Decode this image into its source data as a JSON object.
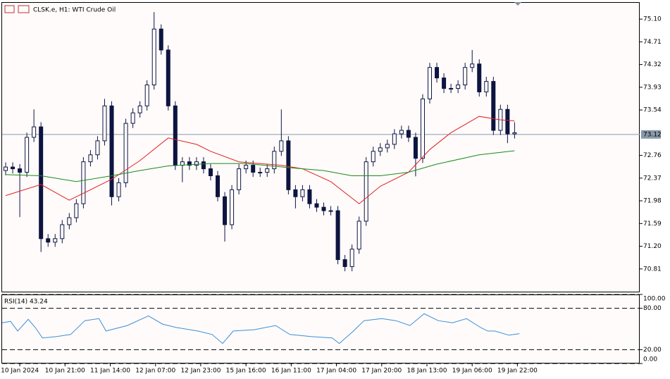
{
  "chart_data": [
    {
      "type": "candlestick",
      "title": "CLSK.e, H1:  WTI Crude Oil",
      "open": [
        72.5,
        72.56,
        72.53,
        72.47,
        73.07,
        73.25,
        71.33,
        71.27,
        71.33,
        71.57,
        71.69,
        71.93,
        72.65,
        72.77,
        73.01,
        73.61,
        72.05,
        72.29,
        73.31,
        73.49,
        73.61,
        73.97,
        74.93,
        74.57,
        73.61,
        72.59,
        72.65,
        72.59,
        72.65,
        72.53,
        72.41,
        72.05,
        71.57,
        72.17,
        72.53,
        72.59,
        72.47,
        72.47,
        72.53,
        72.83,
        73.01,
        72.17,
        72.05,
        72.17,
        71.93,
        71.87,
        71.81,
        71.81,
        70.97,
        70.85,
        71.15,
        71.63,
        72.65,
        72.83,
        72.89,
        72.95,
        73.13,
        73.19,
        73.07,
        72.71,
        73.73,
        74.27,
        74.09,
        73.91,
        73.91,
        73.97,
        74.27,
        74.33,
        73.85,
        74.03,
        73.19,
        73.55,
        73.13
      ],
      "high": [
        72.64,
        72.64,
        72.61,
        73.15,
        73.55,
        73.33,
        71.41,
        71.41,
        71.65,
        71.77,
        72.01,
        72.73,
        72.85,
        73.09,
        73.73,
        73.69,
        72.37,
        73.39,
        73.57,
        73.69,
        74.05,
        75.22,
        75.01,
        74.65,
        73.69,
        72.73,
        72.73,
        72.73,
        72.73,
        72.61,
        72.49,
        72.13,
        72.25,
        72.61,
        72.67,
        72.67,
        72.55,
        72.61,
        72.91,
        73.55,
        73.09,
        72.25,
        72.25,
        72.25,
        72.01,
        71.95,
        71.89,
        71.89,
        71.05,
        71.23,
        71.71,
        72.73,
        72.91,
        72.97,
        73.03,
        73.21,
        73.27,
        73.27,
        73.15,
        73.81,
        74.35,
        74.35,
        74.17,
        73.99,
        74.05,
        74.35,
        74.57,
        74.41,
        74.11,
        74.11,
        73.63,
        73.63,
        73.33
      ],
      "low": [
        72.42,
        72.45,
        71.7,
        72.39,
        72.99,
        71.1,
        71.19,
        71.19,
        71.25,
        71.49,
        71.61,
        71.85,
        72.57,
        72.69,
        72.93,
        71.9,
        71.97,
        72.21,
        73.23,
        73.41,
        73.53,
        73.89,
        74.49,
        73.53,
        72.51,
        72.3,
        72.51,
        72.51,
        72.45,
        72.33,
        71.97,
        71.28,
        71.49,
        72.09,
        72.45,
        72.39,
        72.39,
        72.39,
        72.45,
        72.75,
        72.09,
        71.85,
        71.97,
        71.85,
        71.79,
        71.73,
        71.73,
        70.89,
        70.77,
        70.77,
        71.07,
        71.55,
        72.57,
        72.75,
        72.81,
        72.87,
        73.05,
        72.99,
        72.4,
        72.63,
        73.65,
        74.01,
        73.83,
        73.83,
        73.83,
        73.89,
        74.19,
        73.77,
        73.77,
        73.11,
        73.11,
        72.97,
        73.05
      ],
      "close": [
        72.56,
        72.53,
        72.47,
        73.07,
        73.25,
        71.33,
        71.27,
        71.33,
        71.57,
        71.69,
        71.93,
        72.65,
        72.77,
        73.01,
        73.61,
        72.05,
        72.29,
        73.31,
        73.49,
        73.61,
        73.97,
        74.93,
        74.57,
        73.61,
        72.59,
        72.65,
        72.59,
        72.65,
        72.53,
        72.41,
        72.05,
        71.57,
        72.17,
        72.53,
        72.59,
        72.47,
        72.47,
        72.53,
        72.83,
        73.01,
        72.17,
        72.05,
        72.17,
        71.93,
        71.87,
        71.81,
        71.81,
        70.97,
        70.85,
        71.15,
        71.63,
        72.65,
        72.83,
        72.89,
        72.95,
        73.13,
        73.19,
        73.07,
        72.71,
        73.73,
        74.27,
        74.09,
        73.91,
        73.91,
        73.97,
        74.27,
        74.33,
        73.85,
        74.03,
        73.19,
        73.55,
        73.13,
        73.15
      ],
      "candle_color": "#0d1440",
      "series": [
        {
          "color": "#e02020",
          "x": [
            0,
            5,
            9,
            15,
            19,
            23,
            27,
            29,
            33,
            39,
            42,
            46,
            50,
            53,
            57,
            60,
            63,
            67,
            70,
            72
          ],
          "values": [
            72.07,
            72.26,
            71.99,
            72.35,
            72.67,
            73.06,
            72.95,
            72.83,
            72.65,
            72.59,
            72.53,
            72.31,
            71.93,
            72.23,
            72.47,
            72.86,
            73.15,
            73.43,
            73.37,
            73.35
          ]
        },
        {
          "color": "#1a8a1a",
          "x": [
            0,
            5,
            10,
            15,
            19,
            23,
            29,
            34,
            40,
            45,
            49,
            53,
            57,
            61,
            67,
            72
          ],
          "values": [
            72.43,
            72.41,
            72.31,
            72.41,
            72.5,
            72.58,
            72.62,
            72.62,
            72.55,
            72.5,
            72.41,
            72.41,
            72.47,
            72.61,
            72.77,
            72.84
          ]
        }
      ],
      "xlim": [
        -0.5,
        89.7
      ],
      "ylim": [
        70.42,
        75.38
      ],
      "yticks": [
        {
          "value": 75.1,
          "label": "75.10"
        },
        74.71,
        74.32,
        73.93,
        73.54,
        72.76,
        72.37,
        71.98,
        71.59,
        {
          "value": 71.2,
          "label": "71.20"
        },
        70.81
      ],
      "xticks": [
        {
          "value": 2,
          "label": "10 Jan 2024"
        },
        {
          "value": 8.4,
          "label": "10 Jan 21:00"
        },
        {
          "value": 14.8,
          "label": "11 Jan 14:00"
        },
        {
          "value": 21.2,
          "label": "12 Jan 07:00"
        },
        {
          "value": 27.6,
          "label": "12 Jan 23:00"
        },
        {
          "value": 34,
          "label": "15 Jan 16:00"
        },
        {
          "value": 40.4,
          "label": "16 Jan 11:00"
        },
        {
          "value": 46.8,
          "label": "17 Jan 04:00"
        },
        {
          "value": 53.2,
          "label": "17 Jan 20:00"
        },
        {
          "value": 59.6,
          "label": "18 Jan 13:00"
        },
        {
          "value": 66,
          "label": "19 Jan 06:00"
        },
        {
          "value": 72.4,
          "label": "19 Jan 22:00"
        }
      ],
      "last_price": {
        "value": 73.12,
        "label": "73.12"
      }
    },
    {
      "type": "line",
      "title": "RSI(14) 43.24",
      "series": [
        {
          "color": "#3a8fd6",
          "x": [
            -0.5,
            0.7,
            1.7,
            3.2,
            4.2,
            5.2,
            7.2,
            9.2,
            11.2,
            13.2,
            14.2,
            17.2,
            20.2,
            22.2,
            24.2,
            27.2,
            29.2,
            30.7,
            32.2,
            35.2,
            38.2,
            40.2,
            43.2,
            46.2,
            47.2,
            49.2,
            50.7,
            53.2,
            55.2,
            57.2,
            59.2,
            61.2,
            63.2,
            65.2,
            67.2,
            68.2,
            69.2,
            71.2,
            72.7
          ],
          "values": [
            59,
            61,
            47,
            64,
            52,
            37,
            39,
            42,
            62,
            65,
            47,
            55,
            69,
            57,
            52,
            47,
            42,
            29,
            47,
            49,
            55,
            42,
            39,
            37,
            29,
            47,
            62,
            65,
            62,
            55,
            72,
            62,
            59,
            65,
            52,
            47,
            47,
            41,
            43.24
          ]
        }
      ],
      "xlim": [
        -0.5,
        89.7
      ],
      "ylim": [
        0,
        100
      ],
      "yticks": [
        {
          "value": 100,
          "label": "100.00"
        },
        {
          "value": 80,
          "label": "80.00"
        },
        {
          "value": 20,
          "label": "20.00"
        },
        {
          "value": 0,
          "label": "0.00"
        }
      ]
    }
  ]
}
